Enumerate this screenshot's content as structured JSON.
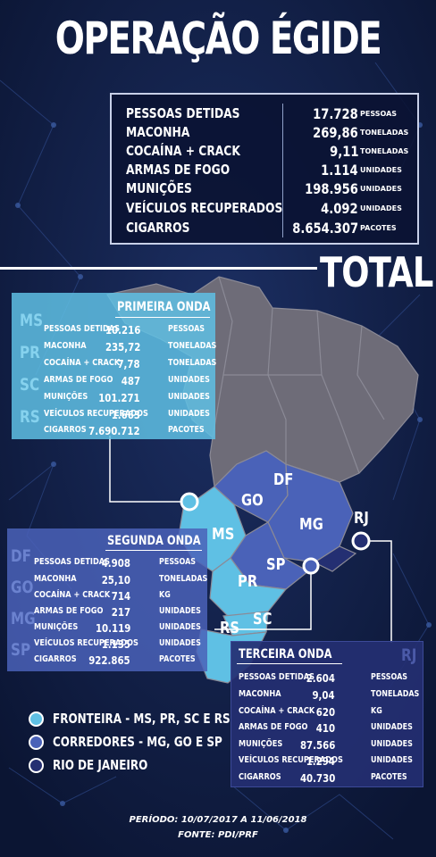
{
  "title": "OPERAÇÃO ÉGIDE",
  "total_label": "TOTAL",
  "total": [
    {
      "label": "PESSOAS DETIDAS",
      "value": "17.728",
      "unit": "PESSOAS"
    },
    {
      "label": "MACONHA",
      "value": "269,86",
      "unit": "TONELADAS"
    },
    {
      "label": "COCAÍNA + CRACK",
      "value": "9,11",
      "unit": "TONELADAS"
    },
    {
      "label": "ARMAS DE FOGO",
      "value": "1.114",
      "unit": "UNIDADES"
    },
    {
      "label": "MUNIÇÕES",
      "value": "198.956",
      "unit": "UNIDADES"
    },
    {
      "label": "VEÍCULOS RECUPERADOS",
      "value": "4.092",
      "unit": "UNIDADES"
    },
    {
      "label": "CIGARROS",
      "value": "8.654.307",
      "unit": "PACOTES"
    }
  ],
  "primeira": {
    "title": "PRIMEIRA ONDA",
    "states": [
      "MS",
      "PR",
      "SC",
      "RS"
    ],
    "rows": [
      {
        "label": "PESSOAS DETIDAS",
        "value": "10.216",
        "unit": "PESSOAS"
      },
      {
        "label": "MACONHA",
        "value": "235,72",
        "unit": "TONELADAS"
      },
      {
        "label": "COCAÍNA + CRACK",
        "value": "7,78",
        "unit": "TONELADAS"
      },
      {
        "label": "ARMAS DE FOGO",
        "value": "487",
        "unit": "UNIDADES"
      },
      {
        "label": "MUNIÇÕES",
        "value": "101.271",
        "unit": "UNIDADES"
      },
      {
        "label": "VEÍCULOS RECUPERADOS",
        "value": "1.663",
        "unit": "UNIDADES"
      },
      {
        "label": "CIGARROS",
        "value": "7.690.712",
        "unit": "PACOTES"
      }
    ]
  },
  "segunda": {
    "title": "SEGUNDA ONDA",
    "states": [
      "DF",
      "GO",
      "MG",
      "SP"
    ],
    "rows": [
      {
        "label": "PESSOAS DETIDAS",
        "value": "4.908",
        "unit": "PESSOAS"
      },
      {
        "label": "MACONHA",
        "value": "25,10",
        "unit": "TONELADAS"
      },
      {
        "label": "COCAÍNA + CRACK",
        "value": "714",
        "unit": "KG"
      },
      {
        "label": "ARMAS DE FOGO",
        "value": "217",
        "unit": "UNIDADES"
      },
      {
        "label": "MUNIÇÕES",
        "value": "10.119",
        "unit": "UNIDADES"
      },
      {
        "label": "VEÍCULOS RECUPERADOS",
        "value": "1.135",
        "unit": "UNIDADES"
      },
      {
        "label": "CIGARROS",
        "value": "922.865",
        "unit": "PACOTES"
      }
    ]
  },
  "terceira": {
    "title": "TERCEIRA ONDA",
    "states": [
      "RJ"
    ],
    "rows": [
      {
        "label": "PESSOAS DETIDAS",
        "value": "2.604",
        "unit": "PESSOAS"
      },
      {
        "label": "MACONHA",
        "value": "9,04",
        "unit": "TONELADAS"
      },
      {
        "label": "COCAÍNA + CRACK",
        "value": "620",
        "unit": "KG"
      },
      {
        "label": "ARMAS DE FOGO",
        "value": "410",
        "unit": "UNIDADES"
      },
      {
        "label": "MUNIÇÕES",
        "value": "87.566",
        "unit": "UNIDADES"
      },
      {
        "label": "VEÍCULOS RECUPERADOS",
        "value": "1.294",
        "unit": "UNIDADES"
      },
      {
        "label": "CIGARROS",
        "value": "40.730",
        "unit": "PACOTES"
      }
    ]
  },
  "map_labels": {
    "df": "DF",
    "go": "GO",
    "mg": "MG",
    "ms": "MS",
    "sp": "SP",
    "rj": "RJ",
    "pr": "PR",
    "sc": "SC",
    "rs": "RS"
  },
  "legend": [
    {
      "label": "FRONTEIRA - MS, PR, SC E RS",
      "color": "#5fc0e4"
    },
    {
      "label": "CORREDORES - MG, GO E SP",
      "color": "#4a62b8"
    },
    {
      "label": "RIO DE JANEIRO",
      "color": "#242f72"
    }
  ],
  "footer": {
    "periodo": "PERÍODO: 10/07/2017 A 11/06/2018",
    "fonte": "FONTE: PDI/PRF"
  },
  "colors": {
    "primeira": "#5fc0e4",
    "segunda": "#4a62b8",
    "terceira": "#242f72",
    "map_gray": "#6e6c78"
  }
}
